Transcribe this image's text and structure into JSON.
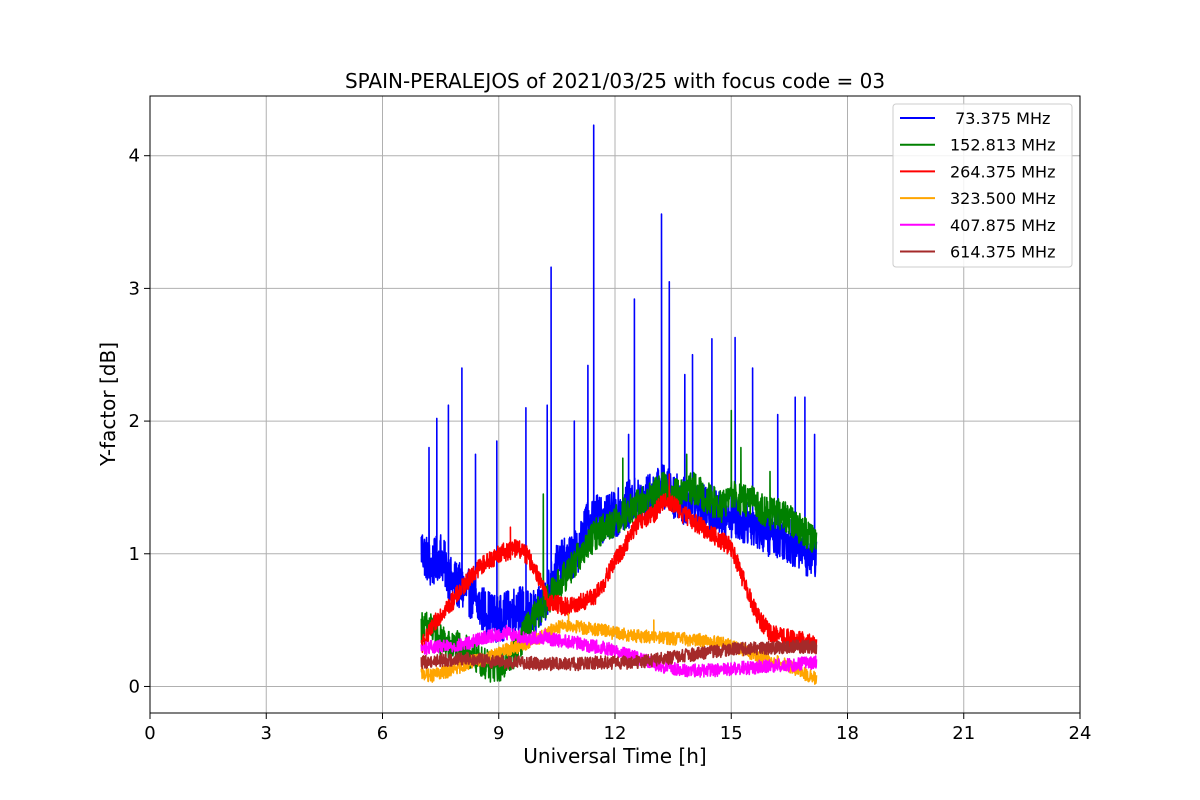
{
  "chart_data": {
    "type": "line",
    "title": "SPAIN-PERALEJOS of 2021/03/25 with focus code = 03",
    "xlabel": "Universal Time [h]",
    "ylabel": "Y-factor [dB]",
    "xlim": [
      0,
      24
    ],
    "ylim": [
      -0.2,
      4.45
    ],
    "xticks": [
      "0",
      "3",
      "6",
      "9",
      "12",
      "15",
      "18",
      "21",
      "24"
    ],
    "yticks": [
      "0",
      "1",
      "2",
      "3",
      "4"
    ],
    "grid": true,
    "legend_position": "top-right",
    "series": [
      {
        "name": " 73.375 MHz",
        "color": "#0000ff",
        "x": [
          7.0,
          7.25,
          7.5,
          7.75,
          8.0,
          8.25,
          8.5,
          8.75,
          9.0,
          9.25,
          9.5,
          9.75,
          10.0,
          10.25,
          10.5,
          10.75,
          11.0,
          11.25,
          11.5,
          11.75,
          12.0,
          12.25,
          12.5,
          12.75,
          13.0,
          13.25,
          13.5,
          13.75,
          14.0,
          14.25,
          14.5,
          14.75,
          15.0,
          15.25,
          15.5,
          15.75,
          16.0,
          16.25,
          16.5,
          16.75,
          17.0,
          17.2
        ],
        "y": [
          1.05,
          0.9,
          1.0,
          0.8,
          0.75,
          0.7,
          0.6,
          0.55,
          0.5,
          0.55,
          0.6,
          0.55,
          0.55,
          0.7,
          0.9,
          0.95,
          1.0,
          1.2,
          1.3,
          1.25,
          1.3,
          1.35,
          1.4,
          1.4,
          1.45,
          1.5,
          1.45,
          1.4,
          1.4,
          1.35,
          1.3,
          1.3,
          1.3,
          1.25,
          1.25,
          1.2,
          1.15,
          1.15,
          1.1,
          1.05,
          1.0,
          1.0
        ],
        "spikes": [
          [
            7.2,
            1.8
          ],
          [
            7.4,
            2.02
          ],
          [
            7.7,
            2.12
          ],
          [
            8.05,
            2.4
          ],
          [
            8.4,
            1.75
          ],
          [
            8.95,
            1.85
          ],
          [
            9.7,
            2.1
          ],
          [
            10.25,
            2.12
          ],
          [
            10.35,
            3.16
          ],
          [
            10.95,
            2.0
          ],
          [
            11.3,
            2.42
          ],
          [
            11.45,
            4.23
          ],
          [
            12.35,
            1.9
          ],
          [
            12.5,
            2.92
          ],
          [
            13.2,
            3.56
          ],
          [
            13.4,
            3.05
          ],
          [
            13.8,
            2.35
          ],
          [
            14.0,
            2.5
          ],
          [
            14.5,
            2.62
          ],
          [
            15.1,
            2.63
          ],
          [
            15.55,
            2.4
          ],
          [
            16.2,
            2.05
          ],
          [
            16.65,
            2.18
          ],
          [
            16.9,
            2.18
          ],
          [
            17.15,
            1.9
          ]
        ]
      },
      {
        "name": "152.813 MHz",
        "color": "#008000",
        "x": [
          7.0,
          7.25,
          7.5,
          7.75,
          8.0,
          8.25,
          8.5,
          8.75,
          9.0,
          9.25,
          9.5,
          9.75,
          10.0,
          10.25,
          10.5,
          10.75,
          11.0,
          11.25,
          11.5,
          11.75,
          12.0,
          12.25,
          12.5,
          12.75,
          13.0,
          13.25,
          13.5,
          13.75,
          14.0,
          14.25,
          14.5,
          14.75,
          15.0,
          15.25,
          15.5,
          15.75,
          16.0,
          16.25,
          16.5,
          16.75,
          17.0,
          17.2
        ],
        "y": [
          0.45,
          0.45,
          0.35,
          0.3,
          0.3,
          0.25,
          0.2,
          0.15,
          0.15,
          0.2,
          0.3,
          0.45,
          0.55,
          0.65,
          0.75,
          0.85,
          0.95,
          1.05,
          1.15,
          1.2,
          1.25,
          1.3,
          1.35,
          1.4,
          1.45,
          1.5,
          1.45,
          1.45,
          1.5,
          1.45,
          1.4,
          1.35,
          1.45,
          1.4,
          1.4,
          1.35,
          1.3,
          1.3,
          1.25,
          1.2,
          1.15,
          1.1
        ],
        "spikes": [
          [
            10.15,
            1.45
          ],
          [
            12.2,
            1.72
          ],
          [
            13.85,
            1.75
          ],
          [
            15.0,
            2.08
          ],
          [
            15.25,
            1.8
          ],
          [
            16.0,
            1.62
          ]
        ]
      },
      {
        "name": "264.375 MHz",
        "color": "#ff0000",
        "x": [
          7.0,
          7.25,
          7.5,
          7.75,
          8.0,
          8.25,
          8.5,
          8.75,
          9.0,
          9.25,
          9.5,
          9.75,
          10.0,
          10.25,
          10.5,
          10.75,
          11.0,
          11.25,
          11.5,
          11.75,
          12.0,
          12.25,
          12.5,
          12.75,
          13.0,
          13.25,
          13.5,
          13.75,
          14.0,
          14.25,
          14.5,
          14.75,
          15.0,
          15.25,
          15.5,
          15.75,
          16.0,
          16.25,
          16.5,
          16.75,
          17.0,
          17.2
        ],
        "y": [
          0.3,
          0.42,
          0.55,
          0.62,
          0.72,
          0.82,
          0.9,
          0.95,
          1.0,
          1.02,
          1.05,
          0.98,
          0.85,
          0.65,
          0.62,
          0.6,
          0.62,
          0.65,
          0.68,
          0.8,
          0.95,
          1.05,
          1.2,
          1.25,
          1.3,
          1.4,
          1.38,
          1.3,
          1.25,
          1.2,
          1.15,
          1.1,
          1.05,
          0.85,
          0.65,
          0.5,
          0.4,
          0.38,
          0.36,
          0.35,
          0.33,
          0.32
        ],
        "spikes": [
          [
            9.3,
            1.2
          ],
          [
            13.4,
            1.6
          ]
        ]
      },
      {
        "name": "323.500 MHz",
        "color": "#ffa500",
        "x": [
          7.0,
          7.25,
          7.5,
          7.75,
          8.0,
          8.25,
          8.5,
          8.75,
          9.0,
          9.25,
          9.5,
          9.75,
          10.0,
          10.25,
          10.5,
          10.75,
          11.0,
          11.25,
          11.5,
          11.75,
          12.0,
          12.25,
          12.5,
          12.75,
          13.0,
          13.25,
          13.5,
          13.75,
          14.0,
          14.25,
          14.5,
          14.75,
          15.0,
          15.25,
          15.5,
          15.75,
          16.0,
          16.25,
          16.5,
          16.75,
          17.0,
          17.2
        ],
        "y": [
          0.1,
          0.08,
          0.1,
          0.12,
          0.15,
          0.18,
          0.2,
          0.22,
          0.25,
          0.28,
          0.3,
          0.33,
          0.36,
          0.4,
          0.45,
          0.46,
          0.45,
          0.44,
          0.43,
          0.42,
          0.4,
          0.39,
          0.38,
          0.38,
          0.37,
          0.37,
          0.36,
          0.36,
          0.35,
          0.35,
          0.34,
          0.33,
          0.3,
          0.28,
          0.25,
          0.22,
          0.2,
          0.18,
          0.15,
          0.12,
          0.08,
          0.06
        ],
        "spikes": [
          [
            10.8,
            0.55
          ],
          [
            13.0,
            0.5
          ]
        ]
      },
      {
        "name": "407.875 MHz",
        "color": "#ff00ff",
        "x": [
          7.0,
          7.25,
          7.5,
          7.75,
          8.0,
          8.25,
          8.5,
          8.75,
          9.0,
          9.25,
          9.5,
          9.75,
          10.0,
          10.25,
          10.5,
          10.75,
          11.0,
          11.25,
          11.5,
          11.75,
          12.0,
          12.25,
          12.5,
          12.75,
          13.0,
          13.25,
          13.5,
          13.75,
          14.0,
          14.25,
          14.5,
          14.75,
          15.0,
          15.25,
          15.5,
          15.75,
          16.0,
          16.25,
          16.5,
          16.75,
          17.0,
          17.2
        ],
        "y": [
          0.28,
          0.3,
          0.3,
          0.3,
          0.31,
          0.33,
          0.36,
          0.38,
          0.39,
          0.4,
          0.38,
          0.36,
          0.37,
          0.36,
          0.35,
          0.34,
          0.33,
          0.31,
          0.3,
          0.29,
          0.27,
          0.25,
          0.22,
          0.2,
          0.17,
          0.15,
          0.13,
          0.12,
          0.12,
          0.12,
          0.12,
          0.13,
          0.13,
          0.14,
          0.14,
          0.15,
          0.15,
          0.16,
          0.16,
          0.17,
          0.18,
          0.18
        ],
        "spikes": [
          [
            9.2,
            0.46
          ],
          [
            10.2,
            0.43
          ]
        ]
      },
      {
        "name": "614.375 MHz",
        "color": "#a52a2a",
        "x": [
          7.0,
          7.25,
          7.5,
          7.75,
          8.0,
          8.25,
          8.5,
          8.75,
          9.0,
          9.25,
          9.5,
          9.75,
          10.0,
          10.25,
          10.5,
          10.75,
          11.0,
          11.25,
          11.5,
          11.75,
          12.0,
          12.25,
          12.5,
          12.75,
          13.0,
          13.25,
          13.5,
          13.75,
          14.0,
          14.25,
          14.5,
          14.75,
          15.0,
          15.25,
          15.5,
          15.75,
          16.0,
          16.25,
          16.5,
          16.75,
          17.0,
          17.2
        ],
        "y": [
          0.18,
          0.19,
          0.2,
          0.2,
          0.21,
          0.21,
          0.2,
          0.19,
          0.19,
          0.18,
          0.18,
          0.18,
          0.17,
          0.17,
          0.17,
          0.17,
          0.17,
          0.17,
          0.18,
          0.18,
          0.18,
          0.18,
          0.18,
          0.19,
          0.2,
          0.21,
          0.22,
          0.23,
          0.24,
          0.25,
          0.26,
          0.27,
          0.28,
          0.28,
          0.29,
          0.29,
          0.29,
          0.29,
          0.3,
          0.3,
          0.3,
          0.29
        ],
        "spikes": []
      }
    ]
  }
}
